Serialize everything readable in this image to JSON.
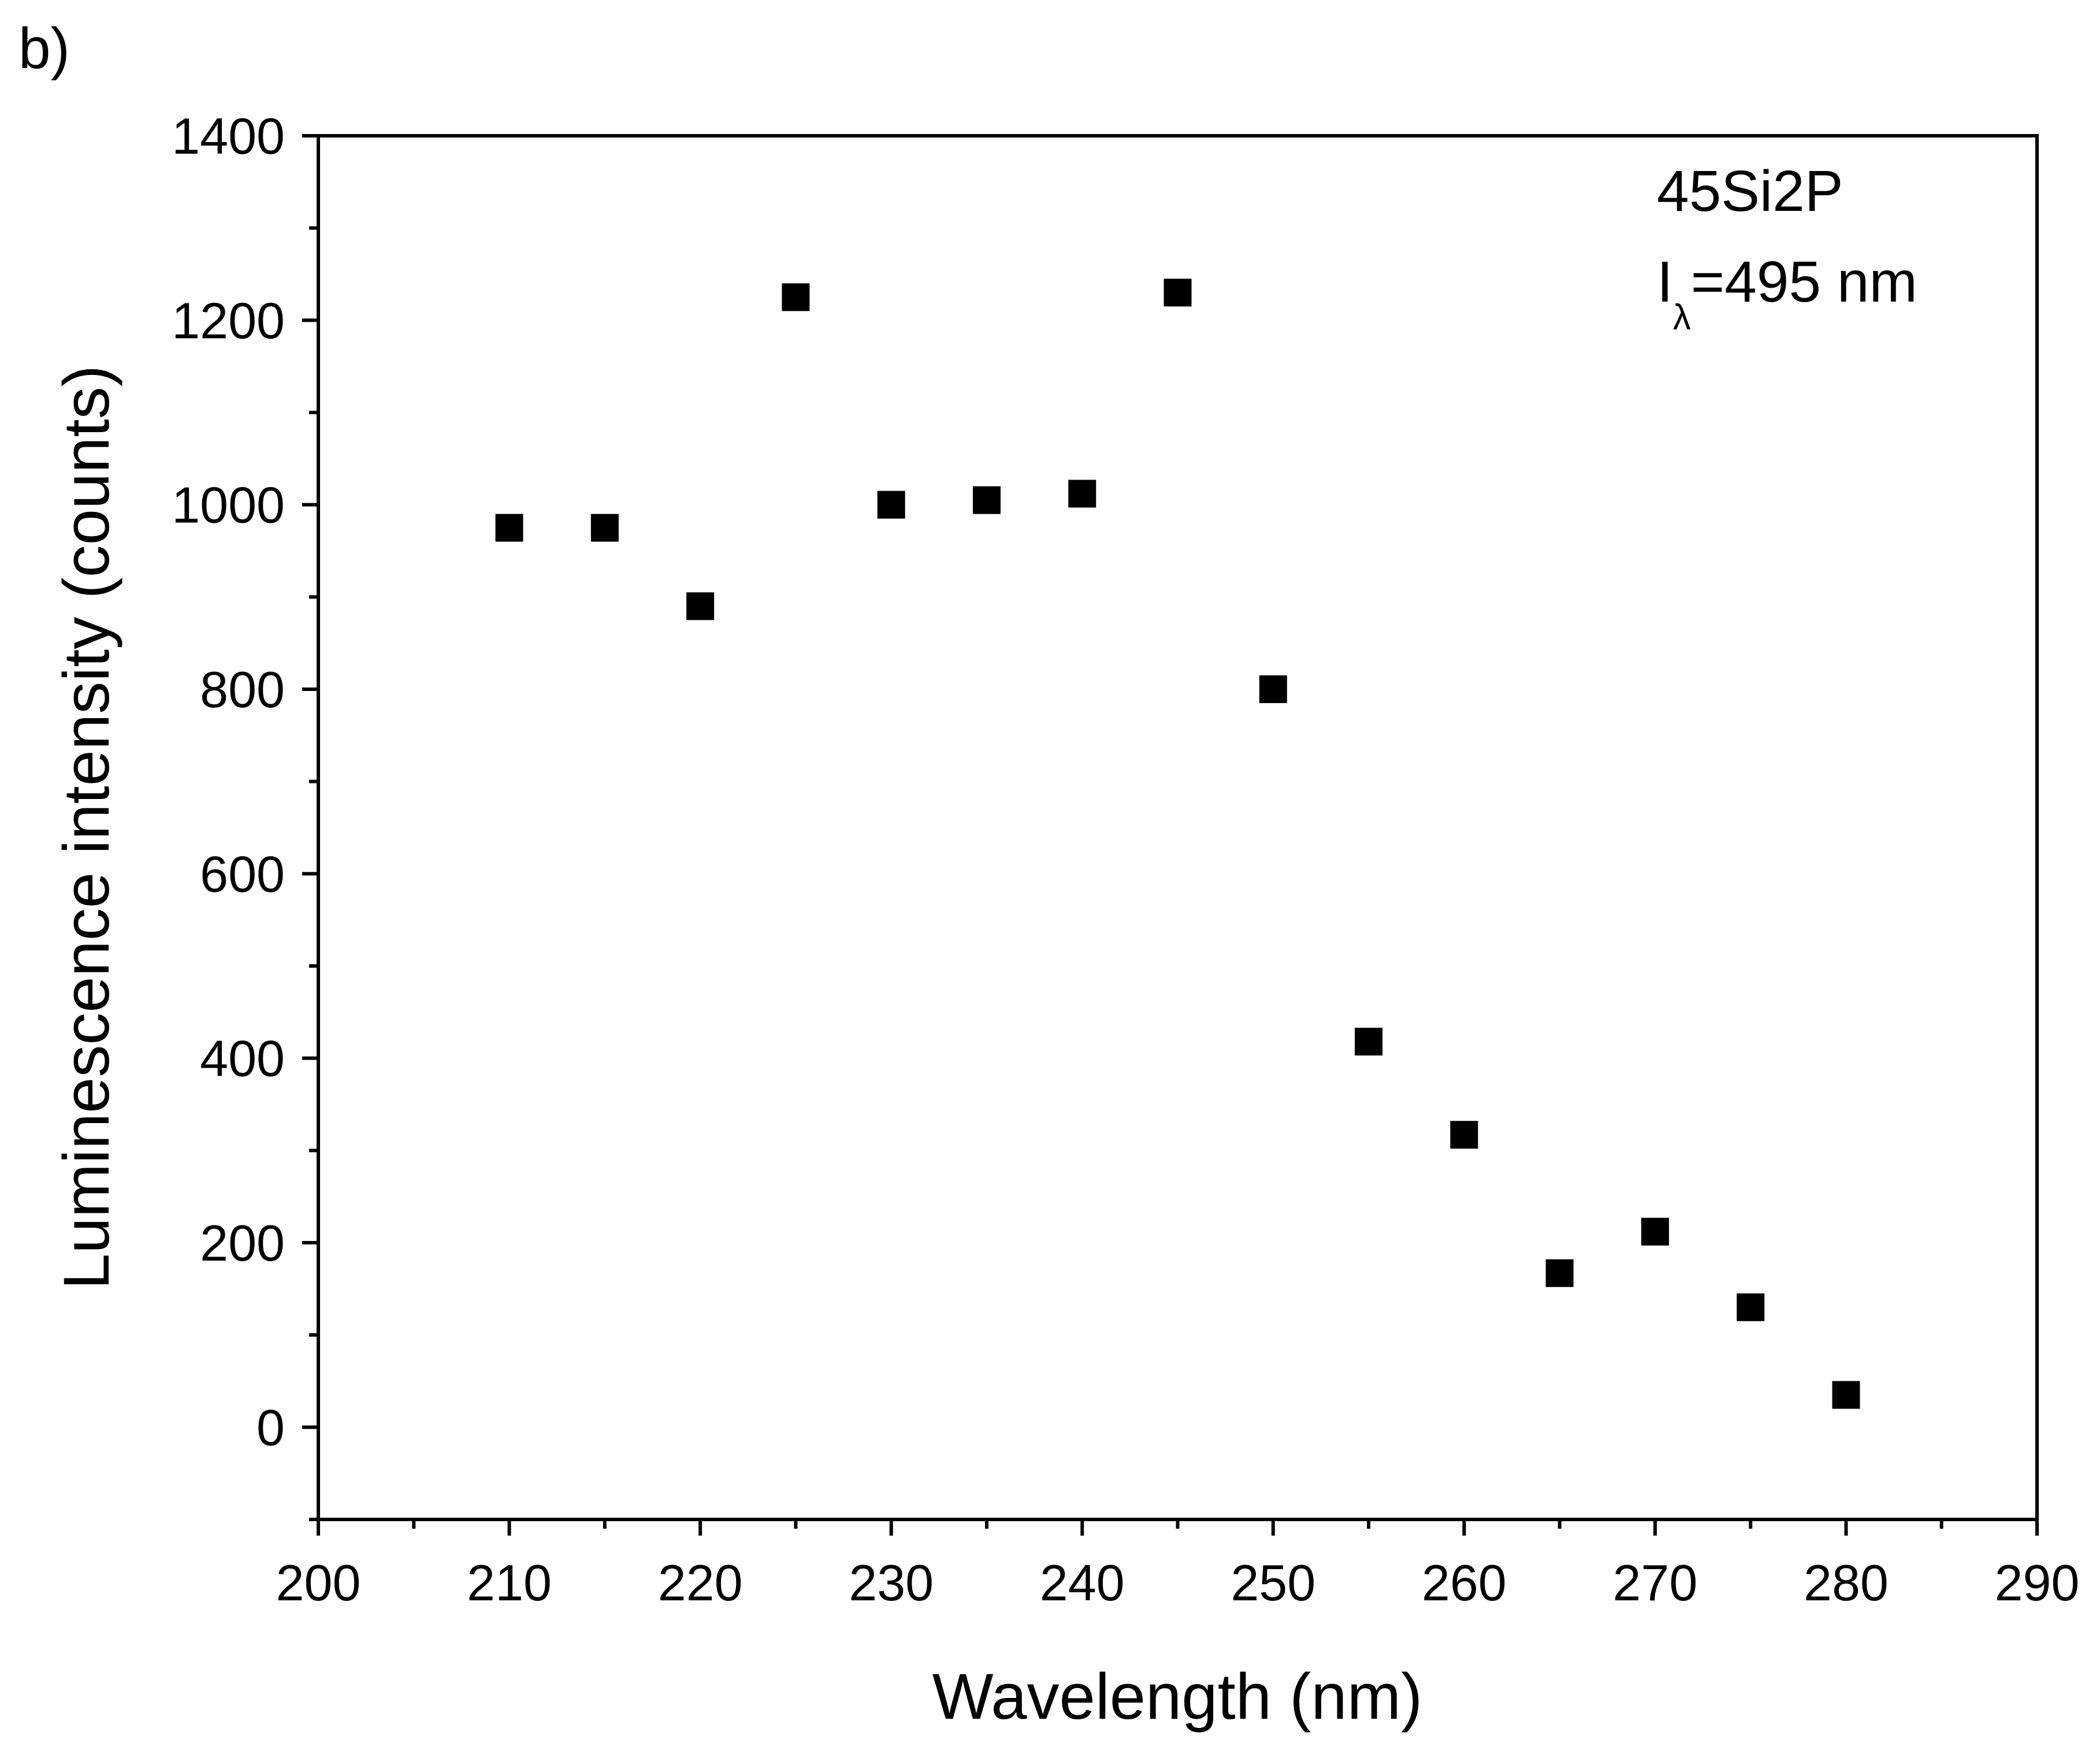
{
  "panel_label": "b)",
  "chart_data": {
    "type": "scatter",
    "title": "",
    "xlabel": "Wavelength (nm)",
    "ylabel": "Luminescence intensity (counts)",
    "xlim": [
      200,
      290
    ],
    "ylim": [
      -100,
      1400
    ],
    "x_ticks": [
      200,
      210,
      220,
      230,
      240,
      250,
      260,
      270,
      280,
      290
    ],
    "y_ticks": [
      0,
      200,
      400,
      600,
      800,
      1000,
      1200,
      1400
    ],
    "x_tick_labels": [
      "200",
      "210",
      "220",
      "230",
      "240",
      "250",
      "260",
      "270",
      "280",
      "290"
    ],
    "y_tick_labels": [
      "0",
      "200",
      "400",
      "600",
      "800",
      "1000",
      "1200",
      "1400"
    ],
    "grid": false,
    "marker": "square",
    "color": "#000000",
    "series": [
      {
        "name": "45Si2P",
        "x": [
          210,
          215,
          220,
          225,
          230,
          235,
          240,
          245,
          250,
          255,
          260,
          265,
          270,
          275,
          280
        ],
        "y": [
          975,
          975,
          890,
          1225,
          1000,
          1005,
          1012,
          1230,
          800,
          418,
          317,
          167,
          212,
          130,
          35
        ]
      }
    ],
    "annotation": {
      "line1": "45Si2P",
      "line2_main": "I",
      "line2_sub": "λ",
      "line2_rest": "=495 nm"
    }
  }
}
